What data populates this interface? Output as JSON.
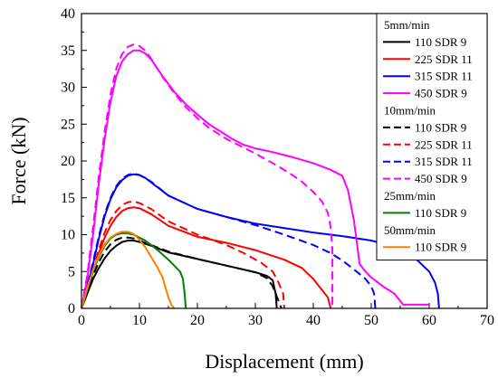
{
  "chart_data": {
    "type": "line",
    "xlabel": "Displacement (mm)",
    "ylabel": "Force (kN)",
    "xlim": [
      0,
      70
    ],
    "ylim": [
      0,
      40
    ],
    "xticks": [
      0,
      10,
      20,
      30,
      40,
      50,
      60,
      70
    ],
    "yticks": [
      0,
      5,
      10,
      15,
      20,
      25,
      30,
      35,
      40
    ],
    "grid": false,
    "legend_position": "top-right",
    "legend_groups": [
      {
        "title": "5mm/min",
        "items": [
          {
            "name": "110 SDR 9",
            "color": "#000000",
            "dash": "solid"
          },
          {
            "name": "225 SDR 11",
            "color": "#ff0000",
            "dash": "solid"
          },
          {
            "name": "315 SDR 11",
            "color": "#0000ff",
            "dash": "solid"
          },
          {
            "name": "450 SDR 9",
            "color": "#ff00ff",
            "dash": "solid"
          }
        ]
      },
      {
        "title": "10mm/min",
        "items": [
          {
            "name": "110 SDR 9",
            "color": "#000000",
            "dash": "dashed"
          },
          {
            "name": "225 SDR 11",
            "color": "#ff0000",
            "dash": "dashed"
          },
          {
            "name": "315 SDR 11",
            "color": "#0000ff",
            "dash": "dashed"
          },
          {
            "name": "450 SDR 9",
            "color": "#ff00ff",
            "dash": "dashed"
          }
        ]
      },
      {
        "title": "25mm/min",
        "items": [
          {
            "name": "110 SDR 9",
            "color": "#008000",
            "dash": "solid"
          }
        ]
      },
      {
        "title": "50mm/min",
        "items": [
          {
            "name": "110 SDR 9",
            "color": "#ff8000",
            "dash": "solid"
          }
        ]
      }
    ],
    "series": [
      {
        "group": "5mm/min",
        "name": "110 SDR 9",
        "color": "#000000",
        "dash": "solid",
        "points": [
          [
            0,
            0
          ],
          [
            1,
            2
          ],
          [
            2,
            4
          ],
          [
            3,
            5.5
          ],
          [
            4,
            6.8
          ],
          [
            5,
            7.8
          ],
          [
            6,
            8.5
          ],
          [
            7,
            9
          ],
          [
            8,
            9.2
          ],
          [
            9,
            9.2
          ],
          [
            10,
            9
          ],
          [
            12,
            8.5
          ],
          [
            15,
            7.6
          ],
          [
            20,
            6.7
          ],
          [
            25,
            5.8
          ],
          [
            30,
            4.9
          ],
          [
            32,
            4.4
          ],
          [
            33,
            3.8
          ],
          [
            33.5,
            2
          ],
          [
            33.7,
            0
          ]
        ]
      },
      {
        "group": "5mm/min",
        "name": "225 SDR 11",
        "color": "#ff0000",
        "dash": "solid",
        "points": [
          [
            0,
            0
          ],
          [
            1,
            2.5
          ],
          [
            2,
            5
          ],
          [
            3,
            7.5
          ],
          [
            4,
            9.6
          ],
          [
            5,
            11.2
          ],
          [
            6,
            12.4
          ],
          [
            7,
            13.2
          ],
          [
            8,
            13.6
          ],
          [
            9,
            13.7
          ],
          [
            10,
            13.6
          ],
          [
            12,
            12.8
          ],
          [
            15,
            11.2
          ],
          [
            20,
            9.7
          ],
          [
            25,
            8.9
          ],
          [
            30,
            7.9
          ],
          [
            35,
            6.6
          ],
          [
            38,
            5.5
          ],
          [
            40,
            4
          ],
          [
            41.5,
            2.5
          ],
          [
            42.5,
            1.5
          ],
          [
            43,
            0
          ]
        ]
      },
      {
        "group": "5mm/min",
        "name": "315 SDR 11",
        "color": "#0000ff",
        "dash": "solid",
        "points": [
          [
            0,
            0
          ],
          [
            1,
            3
          ],
          [
            2,
            6
          ],
          [
            3,
            9.5
          ],
          [
            4,
            12.5
          ],
          [
            5,
            14.8
          ],
          [
            6,
            16.4
          ],
          [
            7,
            17.4
          ],
          [
            8,
            18
          ],
          [
            9,
            18.2
          ],
          [
            10,
            18.1
          ],
          [
            11,
            17.7
          ],
          [
            13,
            16.5
          ],
          [
            15,
            15.3
          ],
          [
            20,
            13.5
          ],
          [
            25,
            12.4
          ],
          [
            30,
            11.5
          ],
          [
            35,
            10.9
          ],
          [
            40,
            10.3
          ],
          [
            45,
            9.8
          ],
          [
            50,
            9.2
          ],
          [
            55,
            8.2
          ],
          [
            58,
            6.5
          ],
          [
            60,
            5
          ],
          [
            61,
            3.5
          ],
          [
            61.5,
            2
          ],
          [
            61.7,
            0
          ]
        ]
      },
      {
        "group": "5mm/min",
        "name": "450 SDR 9",
        "color": "#ff00ff",
        "dash": "solid",
        "points": [
          [
            0,
            0
          ],
          [
            1,
            4
          ],
          [
            2,
            10
          ],
          [
            3,
            17
          ],
          [
            4,
            23
          ],
          [
            5,
            28
          ],
          [
            6,
            31.5
          ],
          [
            7,
            33.5
          ],
          [
            8,
            34.5
          ],
          [
            9,
            35
          ],
          [
            10,
            35
          ],
          [
            11,
            34.6
          ],
          [
            12,
            33.8
          ],
          [
            14,
            31.5
          ],
          [
            16,
            29.4
          ],
          [
            18,
            27.7
          ],
          [
            20,
            26.3
          ],
          [
            22,
            25
          ],
          [
            24,
            24
          ],
          [
            26,
            23
          ],
          [
            28,
            22.2
          ],
          [
            30,
            21.7
          ],
          [
            33,
            21.2
          ],
          [
            36,
            20.6
          ],
          [
            40,
            19.7
          ],
          [
            43,
            18.8
          ],
          [
            45,
            18
          ],
          [
            46,
            16
          ],
          [
            47,
            12
          ],
          [
            47.5,
            9
          ],
          [
            48,
            6
          ],
          [
            49,
            5
          ],
          [
            50,
            4.2
          ],
          [
            52,
            3
          ],
          [
            54,
            2
          ],
          [
            55,
            1
          ],
          [
            55.5,
            0.5
          ],
          [
            60,
            0.5
          ]
        ]
      },
      {
        "group": "10mm/min",
        "name": "110 SDR 9",
        "color": "#000000",
        "dash": "dashed",
        "points": [
          [
            0,
            0
          ],
          [
            1,
            2.3
          ],
          [
            2,
            4.5
          ],
          [
            3,
            6.3
          ],
          [
            4,
            7.7
          ],
          [
            5,
            8.7
          ],
          [
            6,
            9.3
          ],
          [
            7,
            9.6
          ],
          [
            8,
            9.6
          ],
          [
            9,
            9.5
          ],
          [
            10,
            9.2
          ],
          [
            12,
            8.6
          ],
          [
            15,
            7.7
          ],
          [
            20,
            6.7
          ],
          [
            25,
            5.8
          ],
          [
            30,
            4.9
          ],
          [
            32,
            4.1
          ],
          [
            33,
            3
          ],
          [
            34,
            1
          ],
          [
            34.5,
            0
          ]
        ]
      },
      {
        "group": "10mm/min",
        "name": "225 SDR 11",
        "color": "#ff0000",
        "dash": "dashed",
        "points": [
          [
            0,
            0
          ],
          [
            1,
            2.6
          ],
          [
            2,
            5.3
          ],
          [
            3,
            8
          ],
          [
            4,
            10.3
          ],
          [
            5,
            12
          ],
          [
            6,
            13.2
          ],
          [
            7,
            14
          ],
          [
            8,
            14.4
          ],
          [
            9,
            14.5
          ],
          [
            10,
            14.3
          ],
          [
            12,
            13.5
          ],
          [
            15,
            11.8
          ],
          [
            20,
            10
          ],
          [
            25,
            8.6
          ],
          [
            28,
            7.5
          ],
          [
            31,
            6.2
          ],
          [
            33,
            5
          ],
          [
            34,
            3.5
          ],
          [
            34.8,
            2
          ],
          [
            35,
            0
          ]
        ]
      },
      {
        "group": "10mm/min",
        "name": "315 SDR 11",
        "color": "#0000ff",
        "dash": "dashed",
        "points": [
          [
            0,
            0
          ],
          [
            1,
            3
          ],
          [
            2,
            6.3
          ],
          [
            3,
            9.8
          ],
          [
            4,
            12.8
          ],
          [
            5,
            15
          ],
          [
            6,
            16.6
          ],
          [
            7,
            17.6
          ],
          [
            8,
            18.1
          ],
          [
            9,
            18.3
          ],
          [
            10,
            18.1
          ],
          [
            12,
            17.2
          ],
          [
            15,
            15.3
          ],
          [
            20,
            13.5
          ],
          [
            25,
            12.4
          ],
          [
            30,
            11.3
          ],
          [
            35,
            10
          ],
          [
            40,
            8.6
          ],
          [
            43,
            7.5
          ],
          [
            45,
            6.5
          ],
          [
            47,
            5.3
          ],
          [
            49,
            4
          ],
          [
            50,
            3
          ],
          [
            50.5,
            2
          ],
          [
            50.7,
            0
          ]
        ]
      },
      {
        "group": "10mm/min",
        "name": "450 SDR 9",
        "color": "#ff00ff",
        "dash": "dashed",
        "points": [
          [
            0,
            0
          ],
          [
            1,
            4.5
          ],
          [
            2,
            11
          ],
          [
            3,
            18
          ],
          [
            4,
            24
          ],
          [
            5,
            29
          ],
          [
            6,
            32.5
          ],
          [
            7,
            34.5
          ],
          [
            8,
            35.5
          ],
          [
            9,
            35.8
          ],
          [
            10,
            35.6
          ],
          [
            11,
            35
          ],
          [
            12,
            33.9
          ],
          [
            14,
            31.4
          ],
          [
            16,
            29.2
          ],
          [
            18,
            27.3
          ],
          [
            20,
            25.8
          ],
          [
            22,
            24.5
          ],
          [
            25,
            23
          ],
          [
            28,
            21.8
          ],
          [
            30,
            21
          ],
          [
            33,
            19.7
          ],
          [
            36,
            18.3
          ],
          [
            38,
            17.2
          ],
          [
            40,
            15.8
          ],
          [
            41.5,
            14.5
          ],
          [
            42.5,
            13
          ],
          [
            43,
            11
          ],
          [
            43.3,
            8
          ],
          [
            43.3,
            0
          ]
        ]
      },
      {
        "group": "25mm/min",
        "name": "110 SDR 9",
        "color": "#008000",
        "dash": "solid",
        "points": [
          [
            0,
            0
          ],
          [
            1,
            2.5
          ],
          [
            2,
            5
          ],
          [
            3,
            7
          ],
          [
            4,
            8.5
          ],
          [
            5,
            9.5
          ],
          [
            6,
            10
          ],
          [
            7,
            10.2
          ],
          [
            8,
            10.2
          ],
          [
            9,
            10
          ],
          [
            10,
            9.6
          ],
          [
            11,
            9.2
          ],
          [
            12,
            8.6
          ],
          [
            13,
            8
          ],
          [
            14,
            7.3
          ],
          [
            15,
            6.6
          ],
          [
            16,
            5.8
          ],
          [
            17,
            5
          ],
          [
            17.5,
            4
          ],
          [
            17.8,
            2
          ],
          [
            18,
            0
          ]
        ]
      },
      {
        "group": "50mm/min",
        "name": "110 SDR 9",
        "color": "#ff8000",
        "dash": "solid",
        "points": [
          [
            0,
            0
          ],
          [
            1,
            2.8
          ],
          [
            2,
            5.2
          ],
          [
            3,
            7.2
          ],
          [
            4,
            8.7
          ],
          [
            5,
            9.6
          ],
          [
            6,
            10.1
          ],
          [
            7,
            10.4
          ],
          [
            8,
            10.4
          ],
          [
            9,
            10.1
          ],
          [
            10,
            9.3
          ],
          [
            11,
            8.3
          ],
          [
            12,
            7
          ],
          [
            13,
            5.7
          ],
          [
            14,
            4.2
          ],
          [
            14.5,
            2.8
          ],
          [
            15,
            1.5
          ],
          [
            15.5,
            0.5
          ],
          [
            16,
            0
          ]
        ]
      }
    ]
  }
}
